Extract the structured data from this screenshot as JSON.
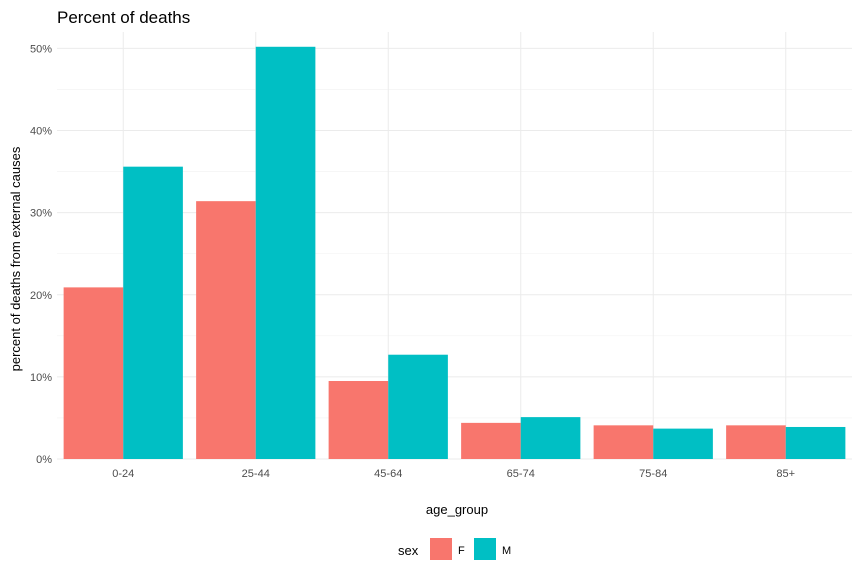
{
  "chart_data": {
    "type": "bar",
    "title": "Percent of deaths",
    "xlabel": "age_group",
    "ylabel": "percent of deaths from external causes",
    "categories": [
      "0-24",
      "25-44",
      "45-64",
      "65-74",
      "75-84",
      "85+"
    ],
    "series": [
      {
        "name": "F",
        "color": "#F8766D",
        "values": [
          20.9,
          31.4,
          9.5,
          4.4,
          4.1,
          4.1
        ]
      },
      {
        "name": "M",
        "color": "#00BFC4",
        "values": [
          35.6,
          50.2,
          12.7,
          5.1,
          3.7,
          3.9
        ]
      }
    ],
    "ylim": [
      0,
      52
    ],
    "yticks": [
      0,
      10,
      20,
      30,
      40,
      50
    ],
    "ytick_labels": [
      "0%",
      "10%",
      "20%",
      "30%",
      "40%",
      "50%"
    ],
    "grid": true,
    "legend": {
      "title": "sex",
      "position": "bottom"
    }
  }
}
